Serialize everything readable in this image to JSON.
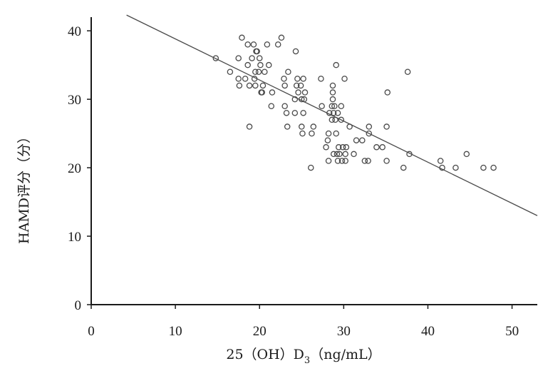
{
  "chart_data": {
    "type": "scatter",
    "title": "",
    "xlabel": "25（OH）D₃（ng/mL）",
    "xlabel_parts": {
      "pre": "25（OH）D",
      "sub": "3",
      "post": "（ng/mL）"
    },
    "ylabel": "HAMD评分（分）",
    "xlim": [
      0,
      53
    ],
    "ylim": [
      0,
      42
    ],
    "xticks": [
      "0",
      "10",
      "20",
      "30",
      "40",
      "50"
    ],
    "yticks": [
      "0",
      "10",
      "20",
      "30",
      "40"
    ],
    "grid": false,
    "legend": "none",
    "marker_color": "#4a4a4a",
    "line_color": "#4a4a4a",
    "trendline": {
      "x": [
        4.2,
        53.0
      ],
      "y": [
        42.3,
        13.0
      ]
    },
    "points": [
      {
        "x": 14.8,
        "y": 36
      },
      {
        "x": 16.5,
        "y": 34
      },
      {
        "x": 17.5,
        "y": 36
      },
      {
        "x": 17.5,
        "y": 33
      },
      {
        "x": 17.6,
        "y": 32
      },
      {
        "x": 17.9,
        "y": 39
      },
      {
        "x": 18.3,
        "y": 33
      },
      {
        "x": 18.6,
        "y": 35
      },
      {
        "x": 18.6,
        "y": 38
      },
      {
        "x": 18.8,
        "y": 32
      },
      {
        "x": 18.8,
        "y": 26
      },
      {
        "x": 19.1,
        "y": 36
      },
      {
        "x": 19.3,
        "y": 38
      },
      {
        "x": 19.4,
        "y": 33
      },
      {
        "x": 19.5,
        "y": 32
      },
      {
        "x": 19.5,
        "y": 34
      },
      {
        "x": 19.6,
        "y": 37
      },
      {
        "x": 19.7,
        "y": 37
      },
      {
        "x": 19.9,
        "y": 34
      },
      {
        "x": 20.0,
        "y": 36
      },
      {
        "x": 20.1,
        "y": 35
      },
      {
        "x": 20.2,
        "y": 31
      },
      {
        "x": 20.3,
        "y": 31
      },
      {
        "x": 20.4,
        "y": 32
      },
      {
        "x": 20.6,
        "y": 34
      },
      {
        "x": 20.9,
        "y": 38
      },
      {
        "x": 21.1,
        "y": 35
      },
      {
        "x": 21.4,
        "y": 29
      },
      {
        "x": 21.5,
        "y": 31
      },
      {
        "x": 22.2,
        "y": 38
      },
      {
        "x": 22.6,
        "y": 39
      },
      {
        "x": 22.9,
        "y": 33
      },
      {
        "x": 23.0,
        "y": 32
      },
      {
        "x": 23.0,
        "y": 29
      },
      {
        "x": 23.2,
        "y": 28
      },
      {
        "x": 23.3,
        "y": 26
      },
      {
        "x": 23.4,
        "y": 34
      },
      {
        "x": 24.2,
        "y": 28
      },
      {
        "x": 24.2,
        "y": 30
      },
      {
        "x": 24.3,
        "y": 37
      },
      {
        "x": 24.4,
        "y": 32
      },
      {
        "x": 24.5,
        "y": 33
      },
      {
        "x": 24.6,
        "y": 31
      },
      {
        "x": 24.9,
        "y": 32
      },
      {
        "x": 25.0,
        "y": 26
      },
      {
        "x": 25.0,
        "y": 30
      },
      {
        "x": 25.1,
        "y": 25
      },
      {
        "x": 25.2,
        "y": 33
      },
      {
        "x": 25.2,
        "y": 28
      },
      {
        "x": 25.3,
        "y": 30
      },
      {
        "x": 25.4,
        "y": 31
      },
      {
        "x": 26.1,
        "y": 20
      },
      {
        "x": 26.2,
        "y": 25
      },
      {
        "x": 26.4,
        "y": 26
      },
      {
        "x": 27.3,
        "y": 33
      },
      {
        "x": 27.4,
        "y": 29
      },
      {
        "x": 27.9,
        "y": 23
      },
      {
        "x": 28.1,
        "y": 24
      },
      {
        "x": 28.2,
        "y": 21
      },
      {
        "x": 28.2,
        "y": 25
      },
      {
        "x": 28.3,
        "y": 28
      },
      {
        "x": 28.6,
        "y": 27
      },
      {
        "x": 28.6,
        "y": 29
      },
      {
        "x": 28.7,
        "y": 30
      },
      {
        "x": 28.7,
        "y": 32
      },
      {
        "x": 28.7,
        "y": 31
      },
      {
        "x": 28.8,
        "y": 28
      },
      {
        "x": 28.8,
        "y": 22
      },
      {
        "x": 28.9,
        "y": 29
      },
      {
        "x": 29.0,
        "y": 27
      },
      {
        "x": 29.1,
        "y": 35
      },
      {
        "x": 29.1,
        "y": 25
      },
      {
        "x": 29.2,
        "y": 22
      },
      {
        "x": 29.3,
        "y": 21
      },
      {
        "x": 29.3,
        "y": 28
      },
      {
        "x": 29.4,
        "y": 23
      },
      {
        "x": 29.5,
        "y": 22
      },
      {
        "x": 29.7,
        "y": 27
      },
      {
        "x": 29.7,
        "y": 29
      },
      {
        "x": 29.8,
        "y": 21
      },
      {
        "x": 29.9,
        "y": 23
      },
      {
        "x": 30.1,
        "y": 33
      },
      {
        "x": 30.2,
        "y": 21
      },
      {
        "x": 30.2,
        "y": 22
      },
      {
        "x": 30.3,
        "y": 23
      },
      {
        "x": 30.7,
        "y": 26
      },
      {
        "x": 31.2,
        "y": 22
      },
      {
        "x": 31.5,
        "y": 24
      },
      {
        "x": 32.2,
        "y": 24
      },
      {
        "x": 32.5,
        "y": 21
      },
      {
        "x": 32.9,
        "y": 21
      },
      {
        "x": 33.0,
        "y": 26
      },
      {
        "x": 33.0,
        "y": 25
      },
      {
        "x": 33.9,
        "y": 23
      },
      {
        "x": 34.6,
        "y": 23
      },
      {
        "x": 35.1,
        "y": 21
      },
      {
        "x": 35.1,
        "y": 26
      },
      {
        "x": 35.2,
        "y": 31
      },
      {
        "x": 37.1,
        "y": 20
      },
      {
        "x": 37.6,
        "y": 34
      },
      {
        "x": 37.8,
        "y": 22
      },
      {
        "x": 41.5,
        "y": 21
      },
      {
        "x": 41.7,
        "y": 20
      },
      {
        "x": 43.3,
        "y": 20
      },
      {
        "x": 44.6,
        "y": 22
      },
      {
        "x": 46.6,
        "y": 20
      },
      {
        "x": 47.8,
        "y": 20
      }
    ]
  }
}
